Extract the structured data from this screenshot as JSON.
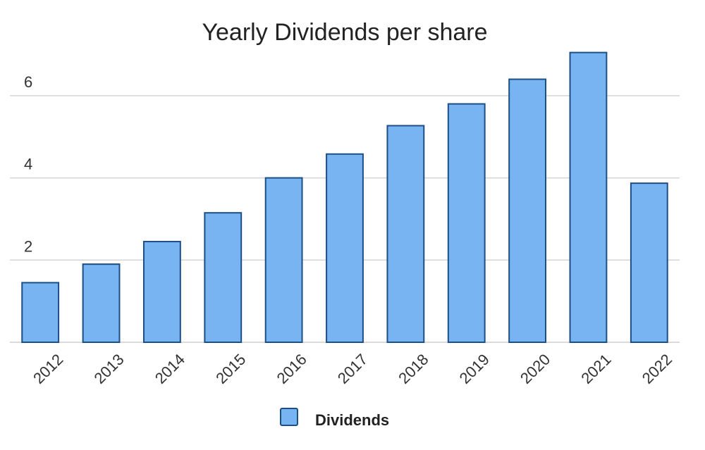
{
  "chart_data": {
    "type": "bar",
    "title": "Yearly Dividends per share",
    "xlabel": "",
    "ylabel": "",
    "categories": [
      "2012",
      "2013",
      "2014",
      "2015",
      "2016",
      "2017",
      "2018",
      "2019",
      "2020",
      "2021",
      "2022"
    ],
    "series": [
      {
        "name": "Dividends",
        "values": [
          1.45,
          1.9,
          2.45,
          3.15,
          4.0,
          4.58,
          5.27,
          5.8,
          6.4,
          7.05,
          3.87
        ],
        "color": "#78b4f2",
        "edge_color": "#1c4f86"
      }
    ],
    "ylim": [
      0,
      7.3
    ],
    "yticks": [
      2,
      4,
      6
    ],
    "grid": true,
    "legend_position": "bottom"
  }
}
